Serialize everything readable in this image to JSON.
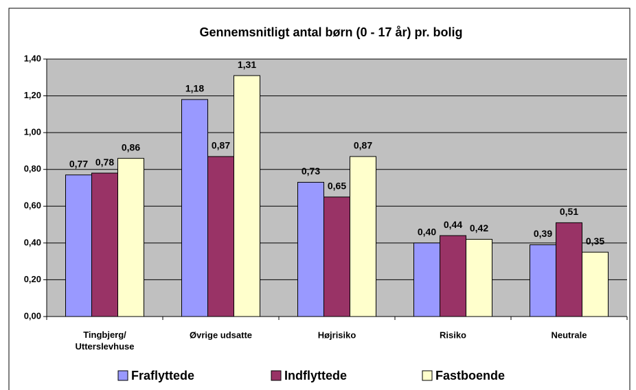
{
  "chart_data": {
    "type": "bar",
    "title": "Gennemsnitligt antal børn (0 - 17 år) pr. bolig",
    "categories": [
      "Tingbjerg/\nUtterslevhuse",
      "Øvrige udsatte",
      "Højrisiko",
      "Risiko",
      "Neutrale"
    ],
    "series": [
      {
        "name": "Fraflyttede",
        "color": "#9999ff",
        "values": [
          0.77,
          1.18,
          0.73,
          0.4,
          0.39
        ],
        "value_labels": [
          "0,77",
          "1,18",
          "0,73",
          "0,40",
          "0,39"
        ]
      },
      {
        "name": "Indflyttede",
        "color": "#993366",
        "values": [
          0.78,
          0.87,
          0.65,
          0.44,
          0.51
        ],
        "value_labels": [
          "0,78",
          "0,87",
          "0,65",
          "0,44",
          "0,51"
        ]
      },
      {
        "name": "Fastboende",
        "color": "#ffffcc",
        "values": [
          0.86,
          1.31,
          0.87,
          0.42,
          0.35
        ],
        "value_labels": [
          "0,86",
          "1,31",
          "0,87",
          "0,42",
          "0,35"
        ]
      }
    ],
    "ylim": [
      0,
      1.4
    ],
    "yticks": [
      {
        "value": 0,
        "label": "0,00"
      },
      {
        "value": 0.2,
        "label": "0,20"
      },
      {
        "value": 0.4,
        "label": "0,40"
      },
      {
        "value": 0.6,
        "label": "0,60"
      },
      {
        "value": 0.8,
        "label": "0,80"
      },
      {
        "value": 1.0,
        "label": "1,00"
      },
      {
        "value": 1.2,
        "label": "1,20"
      },
      {
        "value": 1.4,
        "label": "1,40"
      }
    ],
    "grid": true,
    "legend": "bottom"
  }
}
